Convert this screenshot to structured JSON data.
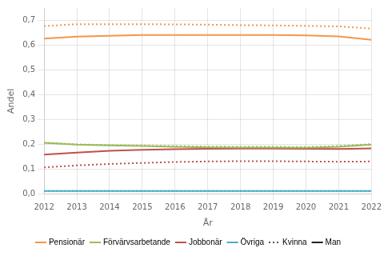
{
  "chart_data": {
    "type": "line",
    "xlabel": "År",
    "ylabel": "Andel",
    "x": [
      2012,
      2013,
      2014,
      2015,
      2016,
      2017,
      2018,
      2019,
      2020,
      2021,
      2022
    ],
    "xlim": [
      2012,
      2022
    ],
    "xticks": [
      2012,
      2013,
      2014,
      2015,
      2016,
      2017,
      2018,
      2019,
      2020,
      2021,
      2022
    ],
    "ylim": [
      0.0,
      0.75
    ],
    "yticks": [
      {
        "value": 0.0,
        "label": "0,0"
      },
      {
        "value": 0.1,
        "label": "0,1"
      },
      {
        "value": 0.2,
        "label": "0,2"
      },
      {
        "value": 0.3,
        "label": "0,3"
      },
      {
        "value": 0.4,
        "label": "0,4"
      },
      {
        "value": 0.5,
        "label": "0,5"
      },
      {
        "value": 0.6,
        "label": "0,6"
      },
      {
        "value": 0.7,
        "label": "0,7"
      }
    ],
    "grid": true,
    "legend": "bottom",
    "series": [
      {
        "name": "Pensionär",
        "color": "#F79646",
        "line_style": "solid",
        "values": [
          0.627,
          0.635,
          0.638,
          0.641,
          0.641,
          0.641,
          0.641,
          0.641,
          0.64,
          0.636,
          0.622
        ]
      },
      {
        "name": "Förvärvsarbetande",
        "color": "#9BBB59",
        "line_style": "solid",
        "values": [
          0.207,
          0.2,
          0.197,
          0.194,
          0.191,
          0.189,
          0.188,
          0.188,
          0.187,
          0.191,
          0.2
        ]
      },
      {
        "name": "Jobbonär",
        "color": "#C0504D",
        "line_style": "solid",
        "values": [
          0.16,
          0.168,
          0.175,
          0.179,
          0.181,
          0.183,
          0.184,
          0.184,
          0.183,
          0.182,
          0.185
        ]
      },
      {
        "name": "Övriga",
        "color": "#4BACC6",
        "line_style": "solid",
        "values": [
          0.013,
          0.013,
          0.013,
          0.013,
          0.013,
          0.013,
          0.013,
          0.013,
          0.013,
          0.013,
          0.013
        ]
      },
      {
        "name": "Pensionär",
        "color": "#F79646",
        "line_style": "dotted",
        "values": [
          0.677,
          0.685,
          0.685,
          0.685,
          0.684,
          0.683,
          0.681,
          0.68,
          0.678,
          0.676,
          0.667
        ]
      },
      {
        "name": "Förvärvsarbetande",
        "color": "#9BBB59",
        "line_style": "dotted",
        "values": [
          0.207,
          0.201,
          0.198,
          0.196,
          0.194,
          0.192,
          0.191,
          0.191,
          0.19,
          0.194,
          0.202
        ]
      },
      {
        "name": "Jobbonär",
        "color": "#C0504D",
        "line_style": "dotted",
        "values": [
          0.108,
          0.116,
          0.122,
          0.126,
          0.13,
          0.132,
          0.133,
          0.133,
          0.132,
          0.131,
          0.132
        ]
      },
      {
        "name": "Övriga",
        "color": "#4BACC6",
        "line_style": "dotted",
        "values": [
          0.013,
          0.013,
          0.013,
          0.013,
          0.013,
          0.013,
          0.013,
          0.013,
          0.013,
          0.013,
          0.013
        ]
      }
    ],
    "line_style_legend": [
      {
        "name": "Kvinna",
        "color": "#555555",
        "line_style": "dotted"
      },
      {
        "name": "Man",
        "color": "#222222",
        "line_style": "solid"
      }
    ]
  }
}
